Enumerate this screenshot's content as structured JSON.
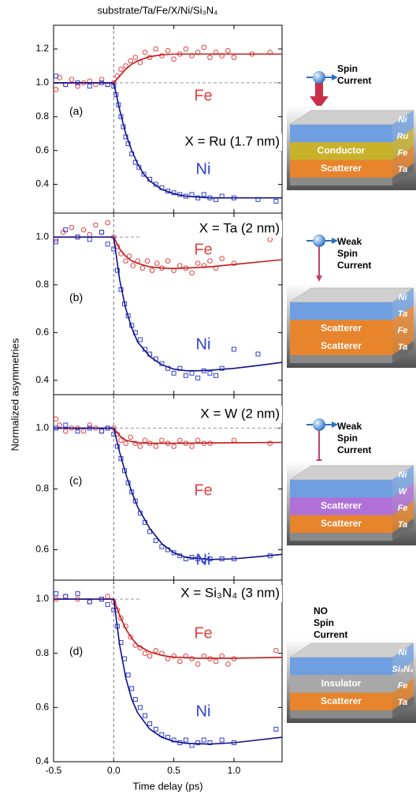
{
  "title": "substrate/Ta/Fe/X/Ni/Si₃N₄",
  "y_label": "Normalized asymmetries",
  "chart_data": [
    {
      "type": "scatter",
      "panel_label": "(a)",
      "annotation": "X = Ru (1.7 nm)",
      "xlim": [
        -0.5,
        1.4
      ],
      "ylim": [
        0.23,
        1.34
      ],
      "yticks": [
        0.4,
        0.6,
        0.8,
        {
          "value": 1,
          "label": "1.0"
        },
        1.2
      ],
      "vline": 0,
      "hline": 1,
      "series": [
        {
          "name": "Fe",
          "color": "#e84040",
          "marker": "circle",
          "x": [
            -0.48,
            -0.45,
            -0.4,
            -0.35,
            -0.3,
            -0.25,
            -0.2,
            -0.15,
            -0.1,
            -0.05,
            0,
            0.03,
            0.06,
            0.1,
            0.14,
            0.18,
            0.22,
            0.26,
            0.3,
            0.35,
            0.4,
            0.45,
            0.5,
            0.55,
            0.6,
            0.65,
            0.7,
            0.75,
            0.8,
            0.85,
            0.9,
            0.95,
            1,
            1.15,
            1.3
          ],
          "values": [
            0.96,
            1.03,
            0.99,
            1.02,
            0.98,
            1,
            1.01,
            0.99,
            1.02,
            0.99,
            1,
            1.04,
            1.08,
            1.1,
            1.13,
            1.15,
            1.12,
            1.18,
            1.15,
            1.2,
            1.16,
            1.19,
            1.14,
            1.17,
            1.2,
            1.16,
            1.18,
            1.21,
            1.15,
            1.18,
            1.16,
            1.19,
            1.15,
            1.17,
            1.18
          ],
          "fit": {
            "color": "#c01818",
            "x": [
              -0.5,
              -0.2,
              -0.1,
              0,
              0.05,
              0.1,
              0.15,
              0.2,
              0.3,
              0.4,
              0.5,
              0.7,
              1,
              1.4
            ],
            "values": [
              1,
              1,
              1,
              1,
              1.04,
              1.08,
              1.11,
              1.13,
              1.155,
              1.165,
              1.17,
              1.17,
              1.17,
              1.17
            ]
          }
        },
        {
          "name": "Ni",
          "color": "#3040d0",
          "marker": "square",
          "x": [
            -0.48,
            -0.4,
            -0.3,
            -0.2,
            -0.1,
            -0.05,
            0,
            0.02,
            0.04,
            0.06,
            0.08,
            0.1,
            0.12,
            0.15,
            0.18,
            0.21,
            0.25,
            0.3,
            0.35,
            0.4,
            0.45,
            0.5,
            0.55,
            0.6,
            0.65,
            0.7,
            0.75,
            0.8,
            0.85,
            0.9,
            1,
            1.2,
            1.35
          ],
          "values": [
            1.04,
            0.99,
            1,
            0.98,
            1,
            0.99,
            0.98,
            0.93,
            0.87,
            0.8,
            0.74,
            0.68,
            0.64,
            0.58,
            0.53,
            0.5,
            0.46,
            0.43,
            0.4,
            0.38,
            0.36,
            0.35,
            0.34,
            0.33,
            0.34,
            0.32,
            0.34,
            0.32,
            0.31,
            0.33,
            0.32,
            0.31,
            0.3
          ],
          "fit": {
            "color": "#10108a",
            "x": [
              -0.5,
              0,
              0.05,
              0.1,
              0.15,
              0.2,
              0.25,
              0.3,
              0.4,
              0.5,
              0.6,
              0.8,
              1,
              1.4
            ],
            "values": [
              1,
              1,
              0.84,
              0.7,
              0.6,
              0.52,
              0.46,
              0.42,
              0.37,
              0.345,
              0.33,
              0.32,
              0.32,
              0.32
            ]
          }
        }
      ]
    },
    {
      "type": "scatter",
      "panel_label": "(b)",
      "annotation": "X = Ta (2 nm)",
      "xlim": [
        -0.5,
        1.4
      ],
      "ylim": [
        0.34,
        1.1
      ],
      "yticks": [
        0.4,
        0.6,
        0.8,
        {
          "value": 1,
          "label": "1.0"
        }
      ],
      "vline": 0,
      "hline": 1,
      "series": [
        {
          "name": "Fe",
          "color": "#e84040",
          "marker": "circle",
          "x": [
            -0.48,
            -0.42,
            -0.35,
            -0.3,
            -0.25,
            -0.2,
            -0.15,
            -0.1,
            -0.05,
            0,
            0.03,
            0.06,
            0.1,
            0.13,
            0.16,
            0.2,
            0.24,
            0.28,
            0.32,
            0.36,
            0.4,
            0.45,
            0.5,
            0.55,
            0.6,
            0.65,
            0.7,
            0.75,
            0.8,
            0.85,
            0.9,
            1,
            1.3
          ],
          "values": [
            0.99,
            1.02,
            1.04,
            1,
            1.03,
            1.01,
            1.05,
            1.02,
            1.06,
            1,
            0.96,
            0.93,
            0.9,
            0.92,
            0.88,
            0.9,
            0.87,
            0.9,
            0.86,
            0.89,
            0.87,
            0.9,
            0.86,
            0.88,
            0.87,
            0.85,
            0.89,
            0.88,
            0.9,
            0.87,
            0.91,
            0.89,
            0.99
          ],
          "fit": {
            "color": "#c01818",
            "x": [
              -0.5,
              0,
              0.05,
              0.1,
              0.15,
              0.2,
              0.3,
              0.4,
              0.5,
              0.6,
              0.8,
              1,
              1.2,
              1.4
            ],
            "values": [
              1,
              1,
              0.95,
              0.92,
              0.9,
              0.89,
              0.875,
              0.87,
              0.868,
              0.87,
              0.875,
              0.885,
              0.895,
              0.905
            ]
          }
        },
        {
          "name": "Ni",
          "color": "#3040d0",
          "marker": "square",
          "x": [
            -0.48,
            -0.4,
            -0.3,
            -0.2,
            -0.1,
            -0.05,
            0,
            0.03,
            0.06,
            0.09,
            0.12,
            0.15,
            0.18,
            0.22,
            0.26,
            0.3,
            0.35,
            0.4,
            0.45,
            0.5,
            0.55,
            0.6,
            0.65,
            0.7,
            0.75,
            0.8,
            0.85,
            0.9,
            1,
            1.2
          ],
          "values": [
            0.98,
            1.03,
            1,
            0.99,
            1.02,
            0.97,
            0.95,
            0.86,
            0.78,
            0.72,
            0.67,
            0.63,
            0.6,
            0.57,
            0.53,
            0.51,
            0.49,
            0.47,
            0.45,
            0.43,
            0.45,
            0.42,
            0.43,
            0.41,
            0.44,
            0.43,
            0.42,
            0.45,
            0.53,
            0.51
          ],
          "fit": {
            "color": "#10108a",
            "x": [
              -0.5,
              0,
              0.05,
              0.1,
              0.15,
              0.2,
              0.3,
              0.4,
              0.5,
              0.6,
              0.7,
              0.8,
              1,
              1.2,
              1.4
            ],
            "values": [
              1,
              1,
              0.82,
              0.7,
              0.62,
              0.56,
              0.5,
              0.465,
              0.447,
              0.44,
              0.44,
              0.442,
              0.45,
              0.462,
              0.475
            ]
          }
        }
      ]
    },
    {
      "type": "scatter",
      "panel_label": "(c)",
      "annotation": "X = W (2 nm)",
      "xlim": [
        -0.5,
        1.4
      ],
      "ylim": [
        0.5,
        1.11
      ],
      "yticks": [
        0.6,
        0.8,
        {
          "value": 1,
          "label": "1.0"
        }
      ],
      "vline": 0,
      "hline": 1,
      "series": [
        {
          "name": "Fe",
          "color": "#e84040",
          "marker": "circle",
          "x": [
            -0.48,
            -0.45,
            -0.4,
            -0.35,
            -0.3,
            -0.25,
            -0.2,
            -0.15,
            -0.1,
            -0.05,
            0,
            0.03,
            0.06,
            0.1,
            0.14,
            0.18,
            0.22,
            0.26,
            0.3,
            0.35,
            0.4,
            0.45,
            0.5,
            0.55,
            0.6,
            0.65,
            0.7,
            0.75,
            0.8,
            1,
            1.3
          ],
          "values": [
            1.03,
            1.01,
            0.99,
            1,
            1,
            0.99,
            1.01,
            1,
            0.99,
            1,
            1,
            0.98,
            0.96,
            0.95,
            0.97,
            0.95,
            0.94,
            0.96,
            0.95,
            0.94,
            0.96,
            0.95,
            0.94,
            0.96,
            0.95,
            0.94,
            0.96,
            0.95,
            0.95,
            0.96,
            0.95
          ],
          "fit": {
            "color": "#c01818",
            "x": [
              -0.5,
              0,
              0.05,
              0.1,
              0.2,
              0.3,
              0.5,
              1,
              1.4
            ],
            "values": [
              1,
              1,
              0.975,
              0.96,
              0.952,
              0.95,
              0.95,
              0.952,
              0.953
            ]
          }
        },
        {
          "name": "Ni",
          "color": "#3040d0",
          "marker": "square",
          "x": [
            -0.48,
            -0.4,
            -0.3,
            -0.2,
            -0.1,
            -0.05,
            0,
            0.03,
            0.06,
            0.09,
            0.12,
            0.15,
            0.18,
            0.22,
            0.26,
            0.3,
            0.35,
            0.4,
            0.45,
            0.5,
            0.55,
            0.6,
            0.65,
            0.7,
            0.75,
            0.8,
            0.9,
            1,
            1.3
          ],
          "values": [
            1,
            1.01,
            0.99,
            1,
            0.99,
            1,
            0.98,
            0.94,
            0.9,
            0.86,
            0.82,
            0.79,
            0.76,
            0.72,
            0.69,
            0.66,
            0.63,
            0.61,
            0.6,
            0.59,
            0.58,
            0.57,
            0.575,
            0.57,
            0.565,
            0.57,
            0.57,
            0.57,
            0.58
          ],
          "fit": {
            "color": "#10108a",
            "x": [
              -0.5,
              0,
              0.05,
              0.1,
              0.15,
              0.2,
              0.3,
              0.4,
              0.5,
              0.6,
              0.8,
              1,
              1.2,
              1.4
            ],
            "values": [
              1,
              1,
              0.92,
              0.85,
              0.79,
              0.74,
              0.67,
              0.62,
              0.59,
              0.575,
              0.568,
              0.57,
              0.577,
              0.585
            ]
          }
        }
      ]
    },
    {
      "type": "scatter",
      "panel_label": "(d)",
      "annotation": "X = Si₃N₄ (3 nm)",
      "x_label": "Time delay (ps)",
      "xlim": [
        -0.5,
        1.4
      ],
      "xticks": [
        -0.5,
        {
          "value": 0,
          "label": "0.0"
        },
        0.5,
        {
          "value": 1,
          "label": "1.0"
        }
      ],
      "ylim": [
        0.4,
        1.07
      ],
      "yticks": [
        0.4,
        0.6,
        0.8,
        {
          "value": 1,
          "label": "1.0"
        }
      ],
      "vline": 0,
      "hline": 1,
      "series": [
        {
          "name": "Fe",
          "color": "#e84040",
          "marker": "circle",
          "x": [
            -0.48,
            -0.4,
            -0.3,
            -0.2,
            -0.1,
            -0.05,
            0,
            0.03,
            0.06,
            0.1,
            0.14,
            0.18,
            0.22,
            0.26,
            0.3,
            0.35,
            0.4,
            0.45,
            0.5,
            0.55,
            0.6,
            0.65,
            0.7,
            0.75,
            0.8,
            0.85,
            0.9,
            0.95,
            1,
            1.35
          ],
          "values": [
            1,
            1.01,
            1,
            0.99,
            1,
            1.01,
            0.99,
            0.96,
            0.93,
            0.9,
            0.86,
            0.83,
            0.82,
            0.8,
            0.79,
            0.81,
            0.8,
            0.78,
            0.79,
            0.77,
            0.79,
            0.78,
            0.76,
            0.79,
            0.78,
            0.77,
            0.79,
            0.76,
            0.78,
            0.81
          ],
          "fit": {
            "color": "#c01818",
            "x": [
              -0.5,
              0,
              0.05,
              0.1,
              0.15,
              0.2,
              0.3,
              0.4,
              0.5,
              0.7,
              1,
              1.4
            ],
            "values": [
              1,
              1,
              0.94,
              0.89,
              0.855,
              0.83,
              0.805,
              0.792,
              0.786,
              0.782,
              0.782,
              0.785
            ]
          }
        },
        {
          "name": "Ni",
          "color": "#3040d0",
          "marker": "square",
          "x": [
            -0.48,
            -0.4,
            -0.3,
            -0.2,
            -0.1,
            -0.05,
            0,
            0.03,
            0.06,
            0.09,
            0.12,
            0.15,
            0.18,
            0.22,
            0.26,
            0.3,
            0.35,
            0.4,
            0.45,
            0.5,
            0.55,
            0.6,
            0.65,
            0.7,
            0.75,
            0.8,
            0.9,
            1,
            1.35
          ],
          "values": [
            1.02,
            1.01,
            1.02,
            0.99,
            1,
            0.98,
            0.96,
            0.9,
            0.84,
            0.78,
            0.72,
            0.67,
            0.63,
            0.6,
            0.57,
            0.54,
            0.52,
            0.5,
            0.49,
            0.48,
            0.47,
            0.48,
            0.46,
            0.47,
            0.48,
            0.47,
            0.48,
            0.47,
            0.52
          ],
          "fit": {
            "color": "#10108a",
            "x": [
              -0.5,
              0,
              0.05,
              0.1,
              0.15,
              0.2,
              0.3,
              0.4,
              0.5,
              0.6,
              0.8,
              1,
              1.2,
              1.4
            ],
            "values": [
              1,
              1,
              0.83,
              0.71,
              0.63,
              0.58,
              0.52,
              0.49,
              0.475,
              0.468,
              0.465,
              0.47,
              0.48,
              0.49
            ]
          }
        }
      ]
    }
  ],
  "diagrams": [
    {
      "caption": [
        "Spin",
        "Current"
      ],
      "arrow": "strong",
      "layers": [
        {
          "color": "#6f9fe0"
        },
        {
          "color": "#c8b22a",
          "label": "Conductor"
        },
        {
          "color": "#e8842c",
          "label": "Scatterer"
        }
      ],
      "side_labels": [
        "Ni",
        "Ru",
        "Fe",
        "Ta"
      ]
    },
    {
      "caption": [
        "Weak",
        "Spin",
        "Current"
      ],
      "arrow": "weak",
      "layers": [
        {
          "color": "#6f9fe0"
        },
        {
          "color": "#e8842c",
          "label": "Scatterer"
        },
        {
          "color": "#e8842c",
          "label": "Scatterer"
        }
      ],
      "side_labels": [
        "Ni",
        "Ta",
        "Fe",
        "Ta"
      ]
    },
    {
      "caption": [
        "Weak",
        "Spin",
        "Current"
      ],
      "arrow": "weak",
      "layers": [
        {
          "color": "#6f9fe0"
        },
        {
          "color": "#b070d8",
          "label": "Scatterer"
        },
        {
          "color": "#e8842c",
          "label": "Scatterer"
        }
      ],
      "side_labels": [
        "Ni",
        "W",
        "Fe",
        "Ta"
      ]
    },
    {
      "caption": [
        "NO",
        "Spin",
        "Current"
      ],
      "layers": [
        {
          "color": "#6f9fe0"
        },
        {
          "color": "#a8a8a8",
          "label": "Insulator"
        },
        {
          "color": "#e8842c",
          "label": "Scatterer"
        }
      ],
      "side_labels": [
        "Ni",
        "Si₃N₄",
        "Fe",
        "Ta"
      ]
    }
  ]
}
